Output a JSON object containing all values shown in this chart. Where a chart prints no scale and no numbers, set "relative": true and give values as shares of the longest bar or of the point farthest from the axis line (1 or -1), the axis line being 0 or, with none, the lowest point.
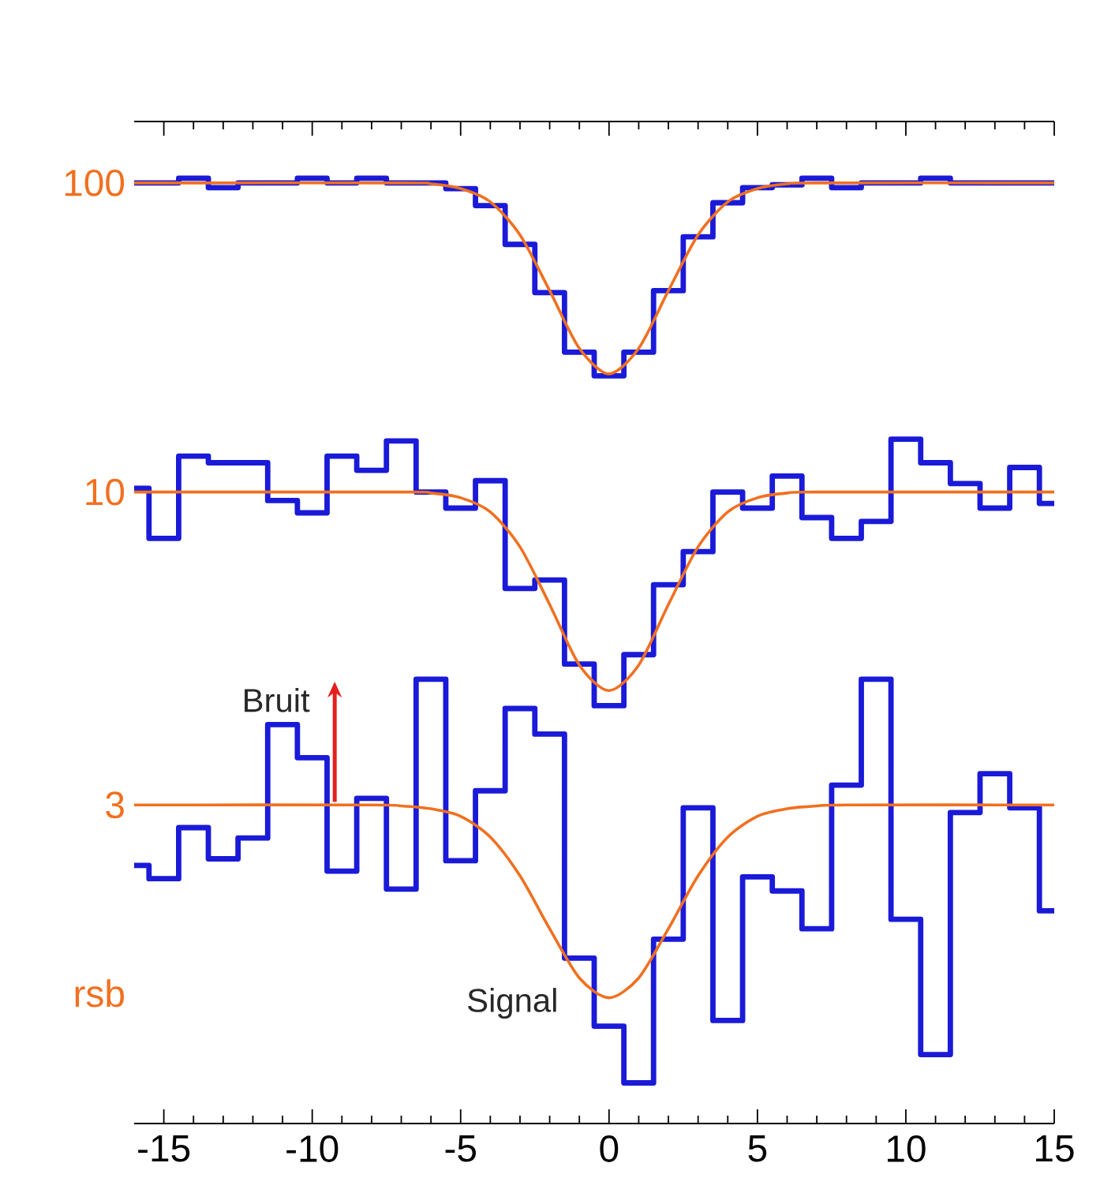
{
  "chart_data": {
    "type": "step",
    "relative": true,
    "xlim": [
      -16,
      15
    ],
    "xticks": [
      -15,
      -10,
      -5,
      0,
      5,
      10,
      15
    ],
    "ylabel": "rsb",
    "marker": "none",
    "line_style": "solid",
    "x": [
      -16,
      -15,
      -14,
      -13,
      -12,
      -11,
      -10,
      -9,
      -8,
      -7,
      -6,
      -5,
      -4,
      -3,
      -2,
      -1,
      0,
      1,
      2,
      3,
      4,
      5,
      6,
      7,
      8,
      9,
      10,
      11,
      12,
      13,
      14,
      15
    ],
    "series": [
      {
        "color": "#1a1ad8",
        "values": [
          0.995,
          0.995,
          1.0,
          0.99,
          0.995,
          0.995,
          1.0,
          0.995,
          1.0,
          0.995,
          0.995,
          0.989,
          0.971,
          0.93,
          0.879,
          0.816,
          0.791,
          0.816,
          0.881,
          0.938,
          0.974,
          0.99,
          0.993,
          1.0,
          0.99,
          0.995,
          0.995,
          1.0,
          0.995,
          0.995,
          0.995,
          0.995
        ]
      },
      {
        "color": "#1a1ad8",
        "values": [
          0.672,
          0.619,
          0.706,
          0.699,
          0.699,
          0.659,
          0.646,
          0.706,
          0.691,
          0.722,
          0.668,
          0.651,
          0.68,
          0.566,
          0.575,
          0.486,
          0.442,
          0.496,
          0.57,
          0.605,
          0.668,
          0.651,
          0.685,
          0.641,
          0.619,
          0.637,
          0.724,
          0.699,
          0.677,
          0.651,
          0.694,
          0.656
        ]
      },
      {
        "color": "#1a1ad8",
        "values": [
          0.273,
          0.259,
          0.313,
          0.28,
          0.302,
          0.422,
          0.387,
          0.267,
          0.344,
          0.248,
          0.47,
          0.278,
          0.352,
          0.439,
          0.412,
          0.175,
          0.103,
          0.043,
          0.195,
          0.334,
          0.109,
          0.261,
          0.246,
          0.206,
          0.358,
          0.47,
          0.216,
          0.073,
          0.329,
          0.37,
          0.334,
          0.225
        ]
      },
      {
        "type": "line",
        "name": "100",
        "color": "#f07020",
        "x": [
          -16,
          -7,
          -6,
          -5,
          -4,
          -3,
          -2,
          -1,
          0,
          1,
          2,
          3,
          4,
          5,
          6,
          7,
          15
        ],
        "values": [
          0.995,
          0.995,
          0.994,
          0.989,
          0.975,
          0.94,
          0.881,
          0.82,
          0.793,
          0.82,
          0.881,
          0.94,
          0.975,
          0.989,
          0.994,
          0.995,
          0.995
        ]
      },
      {
        "type": "line",
        "name": "10",
        "color": "#f07020",
        "x": [
          -16,
          -7,
          -6,
          -5,
          -4,
          -3,
          -2,
          -1,
          0,
          1,
          2,
          3,
          4,
          5,
          6,
          7,
          15
        ],
        "values": [
          0.668,
          0.668,
          0.667,
          0.662,
          0.647,
          0.61,
          0.549,
          0.485,
          0.458,
          0.485,
          0.549,
          0.61,
          0.647,
          0.662,
          0.667,
          0.668,
          0.668
        ]
      },
      {
        "type": "line",
        "name": "3",
        "color": "#f07020",
        "x": [
          -16,
          -8,
          -7,
          -6,
          -5,
          -4,
          -3,
          -2,
          -1,
          0,
          1,
          2,
          3,
          4,
          5,
          6,
          7,
          8,
          15
        ],
        "values": [
          0.337,
          0.337,
          0.336,
          0.333,
          0.325,
          0.303,
          0.262,
          0.206,
          0.154,
          0.133,
          0.154,
          0.206,
          0.262,
          0.303,
          0.325,
          0.333,
          0.336,
          0.337,
          0.337
        ]
      }
    ],
    "annotations": [
      "Bruit",
      "Signal"
    ]
  }
}
